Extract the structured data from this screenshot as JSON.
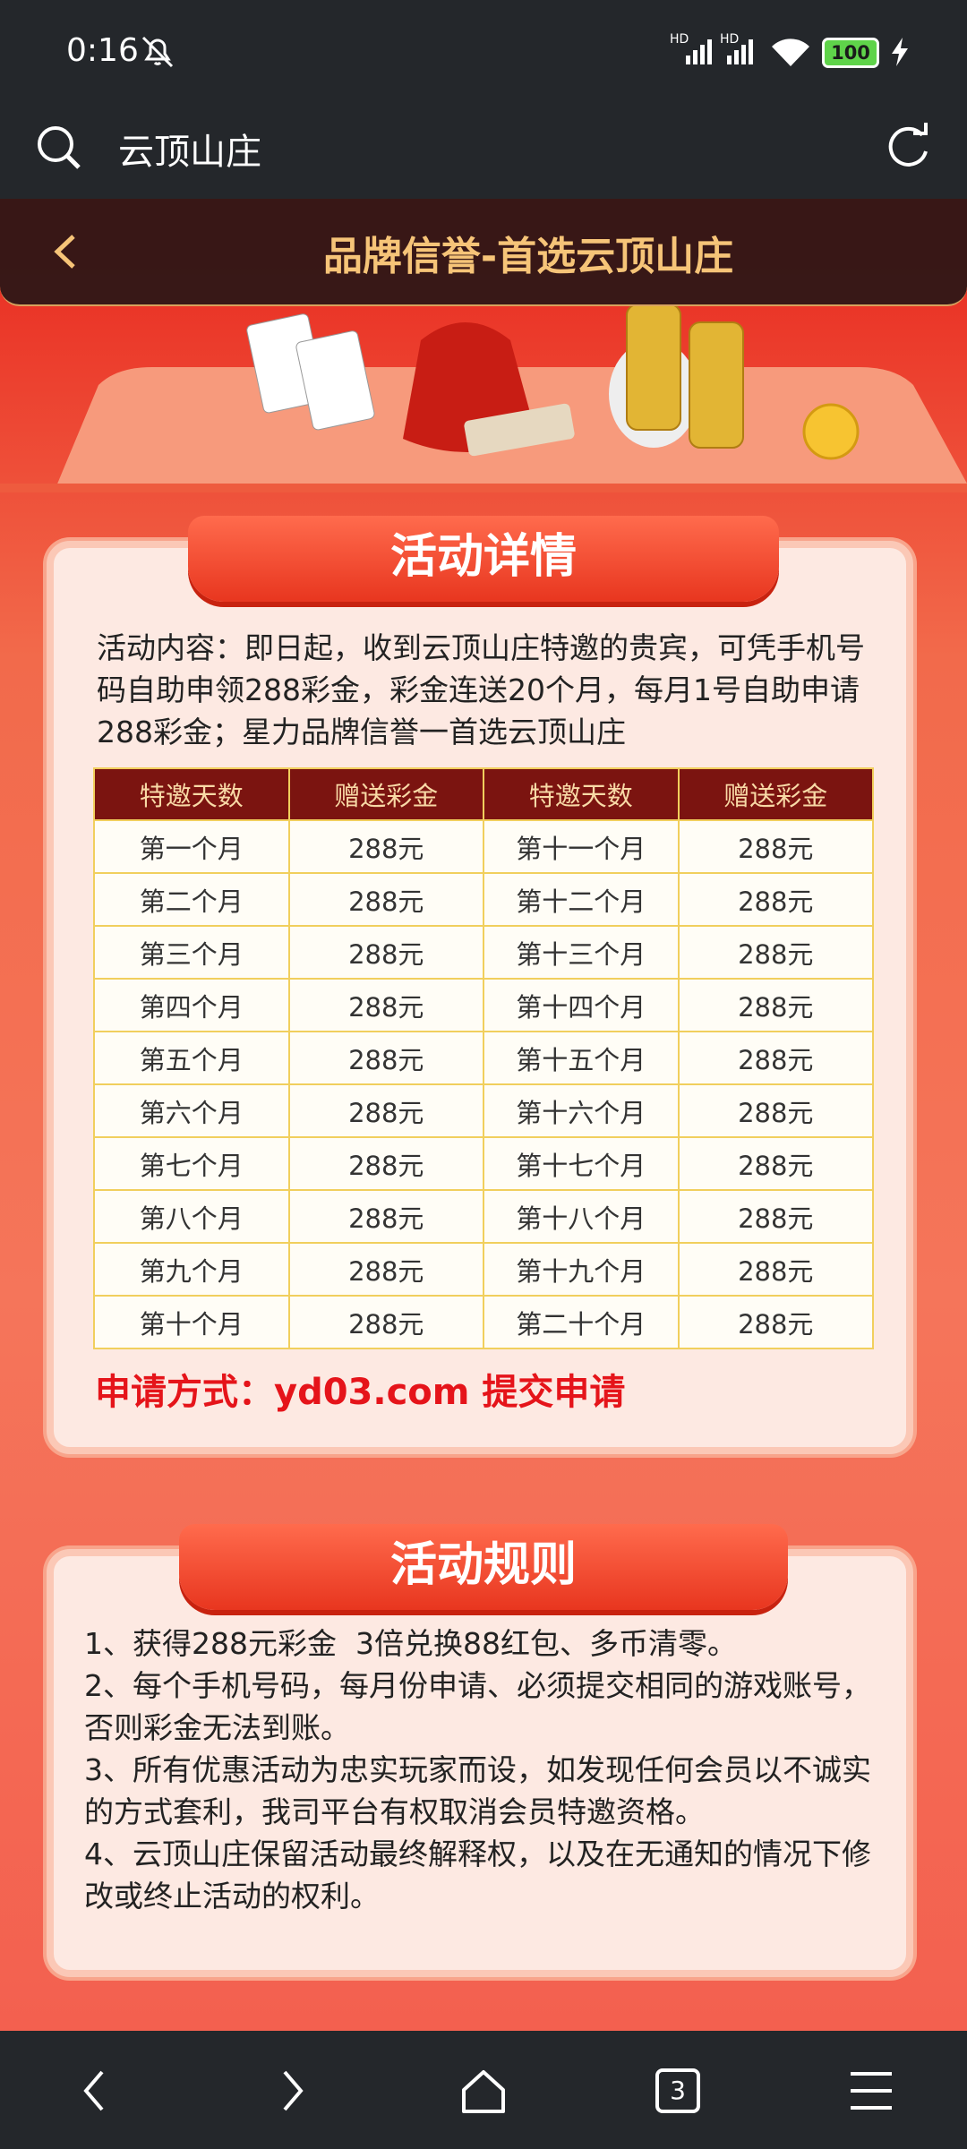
{
  "status_bar": {
    "time": "0:16",
    "signal_labels": [
      "HD",
      "HD"
    ],
    "battery": "100"
  },
  "browser": {
    "search_text": "云顶山庄",
    "tab_count": "3"
  },
  "header": {
    "title": "品牌信誉-首选云顶山庄"
  },
  "details": {
    "title": "活动详情",
    "content": "活动内容：即日起，收到云顶山庄特邀的贵宾，可凭手机号码自助申领288彩金，彩金连送20个月，每月1号自助申请288彩金；星力品牌信誉一首选云顶山庄",
    "table": {
      "header": [
        "特邀天数",
        "赠送彩金",
        "特邀天数",
        "赠送彩金"
      ],
      "rows": [
        [
          "第一个月",
          "288元",
          "第十一个月",
          "288元"
        ],
        [
          "第二个月",
          "288元",
          "第十二个月",
          "288元"
        ],
        [
          "第三个月",
          "288元",
          "第十三个月",
          "288元"
        ],
        [
          "第四个月",
          "288元",
          "第十四个月",
          "288元"
        ],
        [
          "第五个月",
          "288元",
          "第十五个月",
          "288元"
        ],
        [
          "第六个月",
          "288元",
          "第十六个月",
          "288元"
        ],
        [
          "第七个月",
          "288元",
          "第十七个月",
          "288元"
        ],
        [
          "第八个月",
          "288元",
          "第十八个月",
          "288元"
        ],
        [
          "第九个月",
          "288元",
          "第十九个月",
          "288元"
        ],
        [
          "第十个月",
          "288元",
          "第二十个月",
          "288元"
        ]
      ]
    },
    "apply": "申请方式：yd03.com 提交申请"
  },
  "rules": {
    "title": "活动规则",
    "items": [
      "1、获得288元彩金  3倍兑换88红包、多币清零。",
      "2、每个手机号码，每月份申请、必须提交相同的游戏账号，否则彩金无法到账。",
      "3、所有优惠活动为忠实玩家而设，如发现任何会员以不诚实的方式套利，我司平台有权取消会员特邀资格。",
      "4、云顶山庄保留活动最终解释权，以及在无通知的情况下修改或终止活动的权利。"
    ]
  }
}
